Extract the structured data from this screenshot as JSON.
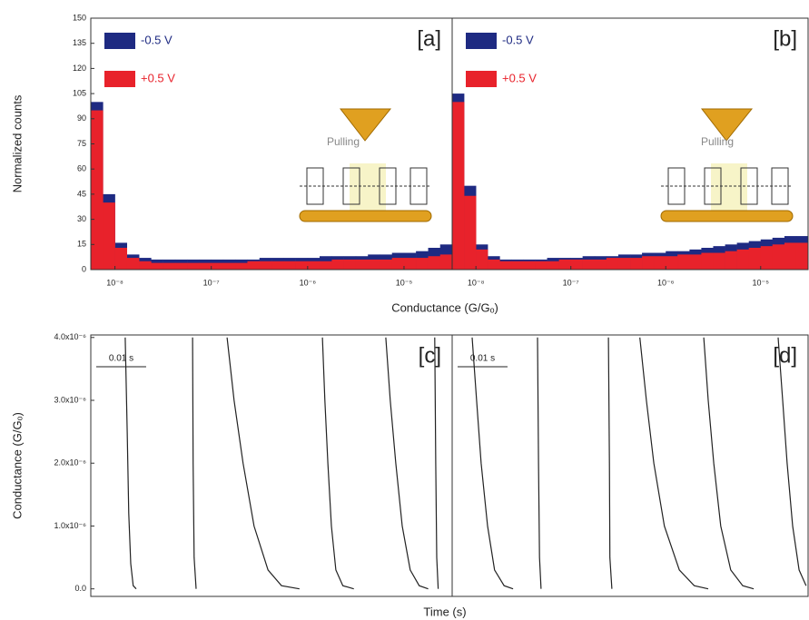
{
  "chart_data": [
    {
      "type": "histogram",
      "panel_label": "[a]",
      "y_label": "Normalized counts",
      "x_label": "Conductance (G/Gₒ)",
      "annotation": "Pulling",
      "log_x": true,
      "legend": "upper left",
      "bins": [
        5.62e-09,
        7.5e-09,
        1e-08,
        1.33e-08,
        1.78e-08,
        2.37e-08,
        3.16e-08,
        4.22e-08,
        5.62e-08,
        7.5e-08,
        1e-07,
        1.33e-07,
        1.78e-07,
        2.37e-07,
        3.16e-07,
        4.22e-07,
        5.62e-07,
        7.5e-07,
        1e-06,
        1.33e-06,
        1.78e-06,
        2.37e-06,
        3.16e-06,
        4.22e-06,
        5.62e-06,
        7.5e-06,
        1e-05,
        1.33e-05,
        1.78e-05,
        2.37e-05,
        3.16e-05
      ],
      "series": [
        {
          "name": "-0.5 V",
          "color": "#1e2a82",
          "values": [
            100,
            45,
            16,
            9,
            7,
            6,
            6,
            6,
            6,
            6,
            6,
            6,
            6,
            6,
            7,
            7,
            7,
            7,
            7,
            8,
            8,
            8,
            8,
            9,
            9,
            10,
            10,
            11,
            13,
            15
          ]
        },
        {
          "name": "+0.5 V",
          "color": "#e8222b",
          "values": [
            95,
            40,
            13,
            7,
            5,
            4,
            4,
            4,
            4,
            4,
            4,
            4,
            4,
            5,
            5,
            5,
            5,
            5,
            5,
            5,
            6,
            6,
            6,
            6,
            6,
            7,
            7,
            7,
            8,
            9
          ]
        }
      ],
      "xlim": [
        5.62e-09,
        3.16e-05
      ],
      "xticks": [
        {
          "value": 1e-08,
          "label": "10⁻⁸"
        },
        {
          "value": 1e-07,
          "label": "10⁻⁷"
        },
        {
          "value": 1e-06,
          "label": "10⁻⁶"
        },
        {
          "value": 1e-05,
          "label": "10⁻⁵"
        }
      ],
      "ylim": [
        0,
        150
      ],
      "yticks": [
        0,
        15,
        30,
        45,
        60,
        75,
        90,
        105,
        120,
        135,
        150
      ]
    },
    {
      "type": "histogram",
      "panel_label": "[b]",
      "annotation": "Pulling",
      "log_x": true,
      "legend": "upper left",
      "bins": [
        5.62e-09,
        7.5e-09,
        1e-08,
        1.33e-08,
        1.78e-08,
        2.37e-08,
        3.16e-08,
        4.22e-08,
        5.62e-08,
        7.5e-08,
        1e-07,
        1.33e-07,
        1.78e-07,
        2.37e-07,
        3.16e-07,
        4.22e-07,
        5.62e-07,
        7.5e-07,
        1e-06,
        1.33e-06,
        1.78e-06,
        2.37e-06,
        3.16e-06,
        4.22e-06,
        5.62e-06,
        7.5e-06,
        1e-05,
        1.33e-05,
        1.78e-05,
        2.37e-05,
        3.16e-05
      ],
      "series": [
        {
          "name": "-0.5 V",
          "color": "#1e2a82",
          "values": [
            105,
            50,
            15,
            8,
            6,
            6,
            6,
            6,
            7,
            7,
            7,
            8,
            8,
            8,
            9,
            9,
            10,
            10,
            11,
            11,
            12,
            13,
            14,
            15,
            16,
            17,
            18,
            19,
            20,
            20
          ]
        },
        {
          "name": "+0.5 V",
          "color": "#e8222b",
          "values": [
            100,
            44,
            12,
            6,
            5,
            5,
            5,
            5,
            5,
            6,
            6,
            6,
            6,
            7,
            7,
            7,
            8,
            8,
            8,
            9,
            9,
            10,
            10,
            11,
            12,
            13,
            14,
            15,
            16,
            16
          ]
        }
      ],
      "xlim": [
        5.62e-09,
        3.16e-05
      ],
      "xticks": [
        {
          "value": 1e-08,
          "label": "10⁻⁸"
        },
        {
          "value": 1e-07,
          "label": "10⁻⁷"
        },
        {
          "value": 1e-06,
          "label": "10⁻⁶"
        },
        {
          "value": 1e-05,
          "label": "10⁻⁵"
        }
      ],
      "ylim": [
        0,
        150
      ]
    },
    {
      "type": "line",
      "panel_label": "[c]",
      "y_label": "Conductance (G/Gₒ)",
      "x_label": "Time (s)",
      "scale_bar": {
        "value": 0.01,
        "label": "0.01 s"
      },
      "x": [
        0.0069,
        0.0073,
        0.0076,
        0.008,
        0.0085,
        0.0091,
        null,
        0.0204,
        0.0205,
        0.0207,
        0.0211,
        null,
        0.0273,
        0.0287,
        0.0305,
        0.0327,
        0.0355,
        0.0382,
        0.0418,
        null,
        0.0464,
        0.0469,
        0.0475,
        0.0482,
        0.0491,
        0.0505,
        0.0527,
        null,
        0.0591,
        0.06,
        0.0611,
        0.0624,
        0.064,
        0.0658,
        0.0676,
        null,
        0.0689,
        0.0691,
        0.0693,
        0.0696
      ],
      "series": [
        {
          "color": "#222222",
          "values": [
            4e-06,
            2.5e-06,
            1.2e-06,
            4e-07,
            5e-08,
            0,
            null,
            4e-06,
            2e-06,
            5e-07,
            0,
            null,
            4e-06,
            3e-06,
            2e-06,
            1e-06,
            3e-07,
            5e-08,
            0,
            null,
            4e-06,
            3e-06,
            2e-06,
            1e-06,
            3e-07,
            5e-08,
            0,
            null,
            4e-06,
            3e-06,
            2e-06,
            1e-06,
            3e-07,
            5e-08,
            0,
            null,
            4e-06,
            2e-06,
            5e-07,
            0
          ]
        }
      ],
      "xlim": [
        0,
        0.0724
      ],
      "ylim": [
        -1.2e-07,
        4.04e-06
      ],
      "yticks": [
        {
          "value": 0,
          "label": "0.0"
        },
        {
          "value": 1e-06,
          "label": "1.0x10⁻⁶"
        },
        {
          "value": 2e-06,
          "label": "2.0x10⁻⁶"
        },
        {
          "value": 3e-06,
          "label": "3.0x10⁻⁶"
        },
        {
          "value": 4e-06,
          "label": "4.0x10⁻⁶"
        }
      ]
    },
    {
      "type": "line",
      "panel_label": "[d]",
      "scale_bar": {
        "value": 0.01,
        "label": "0.01 s"
      },
      "x": [
        0.004,
        0.0049,
        0.0058,
        0.0071,
        0.0085,
        0.0104,
        0.0122,
        null,
        0.0171,
        0.0173,
        0.0175,
        0.0178,
        null,
        0.0313,
        0.0315,
        0.0316,
        0.032,
        null,
        0.0376,
        0.0389,
        0.0404,
        0.0425,
        0.0455,
        0.0485,
        0.0513,
        null,
        0.0504,
        0.0513,
        0.0524,
        0.0538,
        0.0558,
        0.0582,
        0.0604,
        null,
        0.0653,
        0.0662,
        0.0671,
        0.0682,
        0.0695,
        0.0709
      ],
      "series": [
        {
          "color": "#222222",
          "values": [
            4e-06,
            3e-06,
            2e-06,
            1e-06,
            3e-07,
            5e-08,
            0,
            null,
            4e-06,
            2e-06,
            5e-07,
            0,
            null,
            4e-06,
            2e-06,
            5e-07,
            0,
            null,
            4e-06,
            3e-06,
            2e-06,
            1e-06,
            3e-07,
            5e-08,
            0,
            null,
            4e-06,
            3e-06,
            2e-06,
            1e-06,
            3e-07,
            5e-08,
            0,
            null,
            4e-06,
            3e-06,
            2e-06,
            1e-06,
            3e-07,
            5e-08
          ]
        }
      ],
      "xlim": [
        0,
        0.0713
      ],
      "ylim": [
        -1.2e-07,
        4.04e-06
      ]
    }
  ]
}
